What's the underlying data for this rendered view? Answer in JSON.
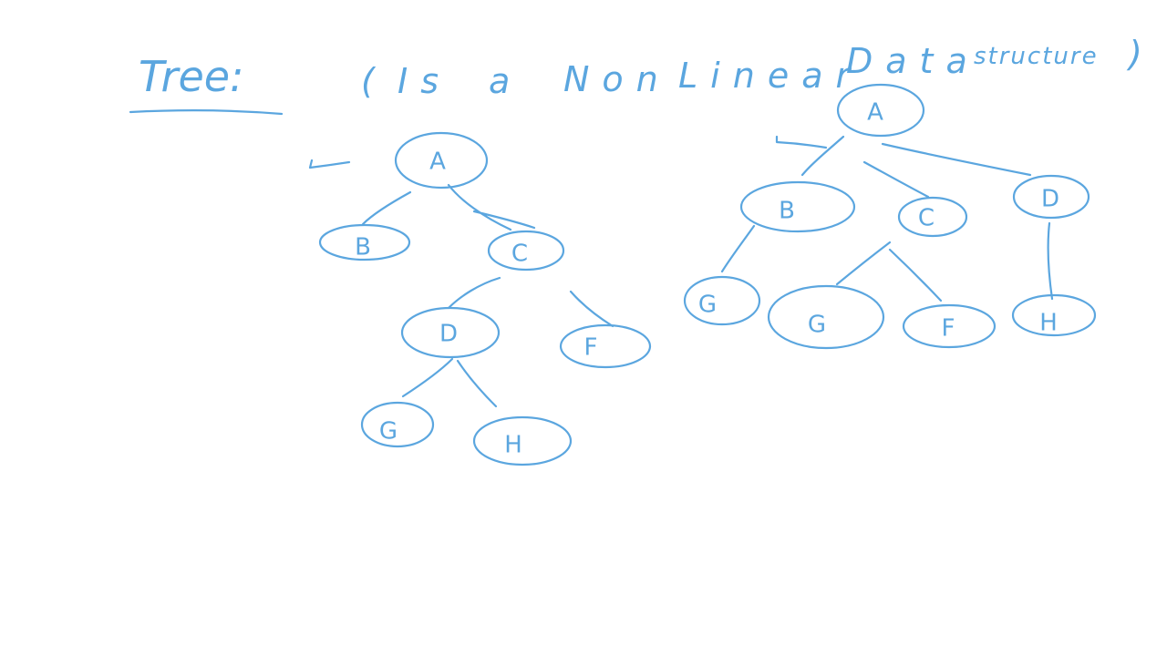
{
  "title": "Tree:",
  "subtitle": {
    "open": "(",
    "words": [
      "Is",
      "a",
      "Non",
      "Linear",
      "Data"
    ],
    "last_word": "structure",
    "close": ")"
  },
  "trees": {
    "left": {
      "nodes": {
        "A": "A",
        "B": "B",
        "C": "C",
        "D": "D",
        "F": "F",
        "G": "G",
        "H": "H"
      }
    },
    "right": {
      "nodes": {
        "A": "A",
        "B": "B",
        "C": "C",
        "D": "D",
        "G1": "G",
        "G2": "G",
        "F": "F",
        "H": "H"
      }
    }
  },
  "colors": {
    "ink": "#5ba6df",
    "background": "#ffffff"
  }
}
